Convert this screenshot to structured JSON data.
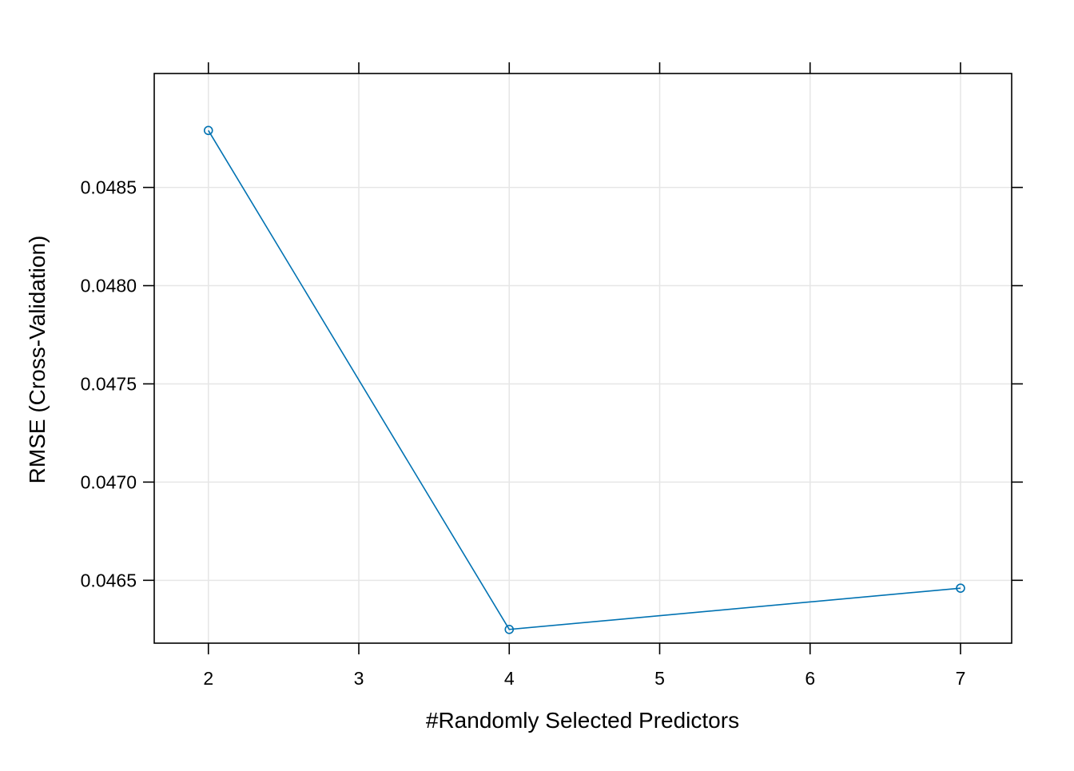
{
  "chart_data": {
    "type": "line",
    "title": "",
    "xlabel": "#Randomly Selected Predictors",
    "ylabel": "RMSE (Cross-Validation)",
    "x": [
      2,
      4,
      7
    ],
    "series": [
      {
        "values": [
          0.04879,
          0.04625,
          0.04646
        ],
        "color": "#0072b2",
        "marker": "open-circle"
      }
    ],
    "x_ticks": [
      2,
      3,
      4,
      5,
      6,
      7
    ],
    "x_tick_labels": [
      "2",
      "3",
      "4",
      "5",
      "6",
      "7"
    ],
    "y_ticks": [
      0.0465,
      0.047,
      0.0475,
      0.048,
      0.0485
    ],
    "y_tick_labels": [
      "0.0465",
      "0.0470",
      "0.0475",
      "0.0480",
      "0.0485"
    ],
    "xlim": [
      1.64,
      7.34
    ],
    "ylim": [
      0.04618,
      0.04908
    ],
    "grid": true,
    "grid_color": "#e6e6e6",
    "legend": "none"
  }
}
